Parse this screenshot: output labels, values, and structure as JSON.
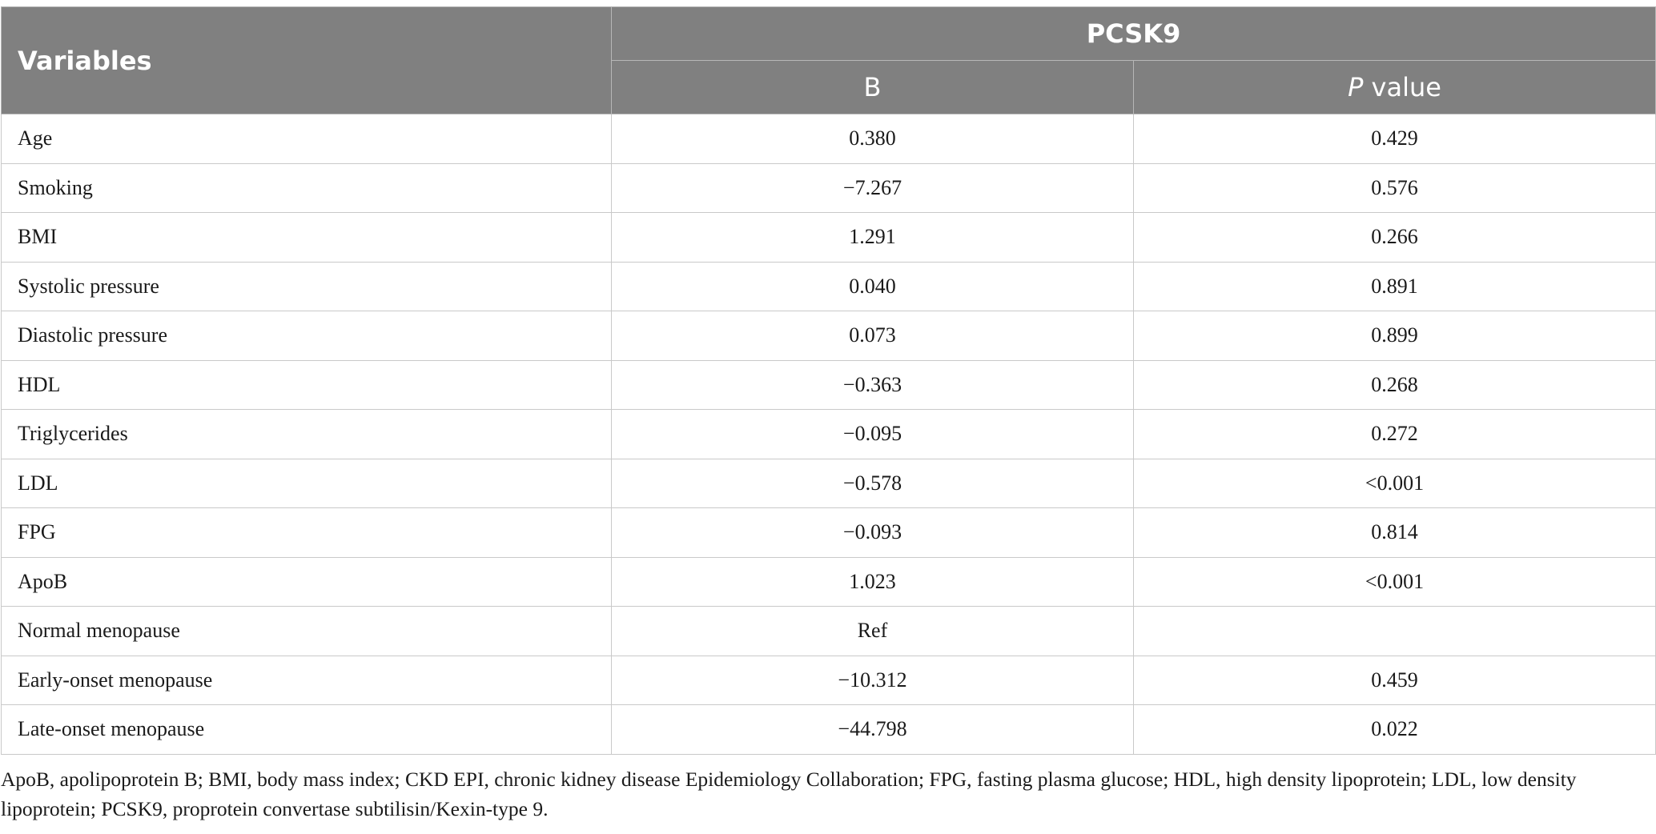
{
  "table": {
    "header": {
      "variables": "Variables",
      "group": "PCSK9",
      "col_b": "B",
      "col_p_italic": "P",
      "col_p_rest": " value"
    },
    "rows": [
      {
        "variable": "Age",
        "b": "0.380",
        "p": "0.429"
      },
      {
        "variable": "Smoking",
        "b": "−7.267",
        "p": "0.576"
      },
      {
        "variable": "BMI",
        "b": "1.291",
        "p": "0.266"
      },
      {
        "variable": "Systolic pressure",
        "b": "0.040",
        "p": "0.891"
      },
      {
        "variable": "Diastolic pressure",
        "b": "0.073",
        "p": "0.899"
      },
      {
        "variable": "HDL",
        "b": "−0.363",
        "p": "0.268"
      },
      {
        "variable": "Triglycerides",
        "b": "−0.095",
        "p": "0.272"
      },
      {
        "variable": "LDL",
        "b": "−0.578",
        "p": "<0.001"
      },
      {
        "variable": "FPG",
        "b": "−0.093",
        "p": "0.814"
      },
      {
        "variable": "ApoB",
        "b": "1.023",
        "p": "<0.001"
      },
      {
        "variable": "Normal menopause",
        "b": "Ref",
        "p": ""
      },
      {
        "variable": "Early-onset menopause",
        "b": "−10.312",
        "p": "0.459"
      },
      {
        "variable": "Late-onset menopause",
        "b": "−44.798",
        "p": "0.022"
      }
    ]
  },
  "footnote": "ApoB, apolipoprotein B; BMI, body mass index; CKD EPI, chronic kidney disease Epidemiology Collaboration; FPG, fasting plasma glucose; HDL, high density lipoprotein; LDL, low density lipoprotein; PCSK9, proprotein convertase subtilisin/Kexin-type 9."
}
